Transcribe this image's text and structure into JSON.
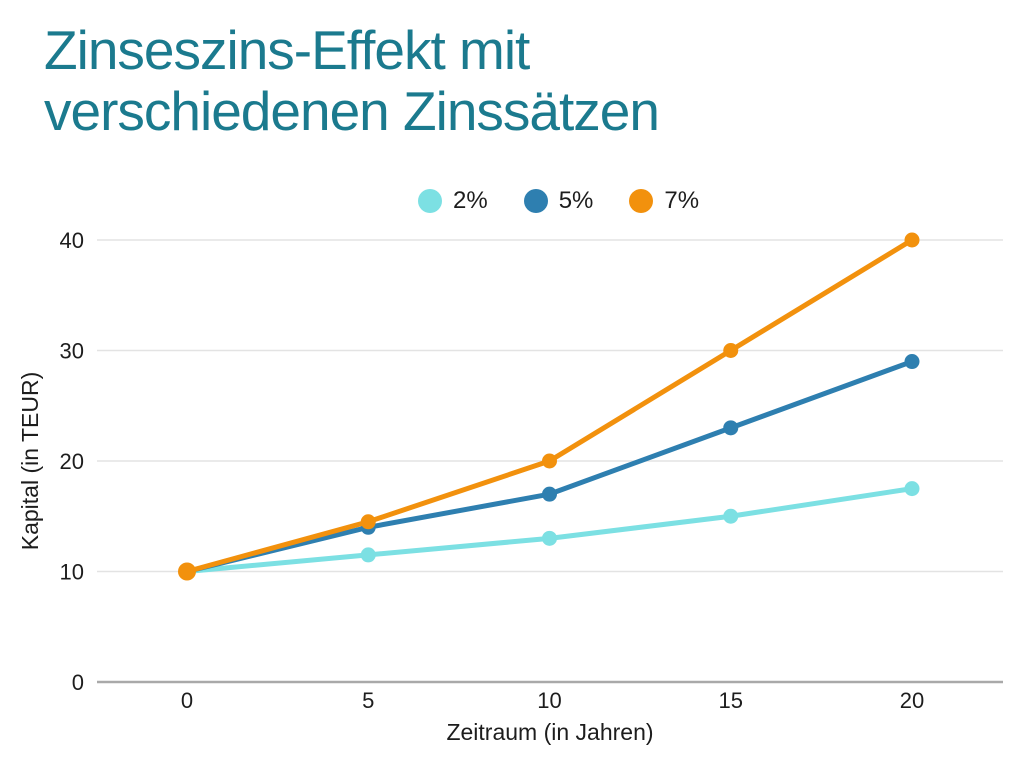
{
  "page": {
    "title_line1": "Zinseszins-Effekt mit",
    "title_line2": "verschiedenen Zinssätzen",
    "title_color": "#1B7A8E",
    "background_color": "#FFFFFF"
  },
  "chart_data": {
    "type": "line",
    "title": "Zinseszins-Effekt mit verschiedenen Zinssätzen",
    "xlabel": "Zeitraum (in Jahren)",
    "ylabel": "Kapital (in TEUR)",
    "x": [
      0,
      5,
      10,
      15,
      20
    ],
    "xticks": [
      "0",
      "5",
      "10",
      "15",
      "20"
    ],
    "yticks": [
      "0",
      "10",
      "20",
      "30",
      "40"
    ],
    "xlim": [
      0,
      20
    ],
    "ylim": [
      0,
      40
    ],
    "grid": "horizontal",
    "legend_position": "top-center",
    "series": [
      {
        "name": "2%",
        "color": "#7CE0E3",
        "values": [
          10,
          11.5,
          13,
          15,
          17.5
        ]
      },
      {
        "name": "5%",
        "color": "#2E7FB0",
        "values": [
          10,
          14,
          17,
          23,
          29
        ]
      },
      {
        "name": "7%",
        "color": "#F2910D",
        "values": [
          10,
          14.5,
          20,
          30,
          40
        ]
      }
    ],
    "style": {
      "grid_line_color": "#E3E3E3",
      "axis_line_color": "#A9A9A9",
      "tick_text_color": "#1D1D1D",
      "line_width": 5,
      "marker_radius": 7.5
    }
  }
}
